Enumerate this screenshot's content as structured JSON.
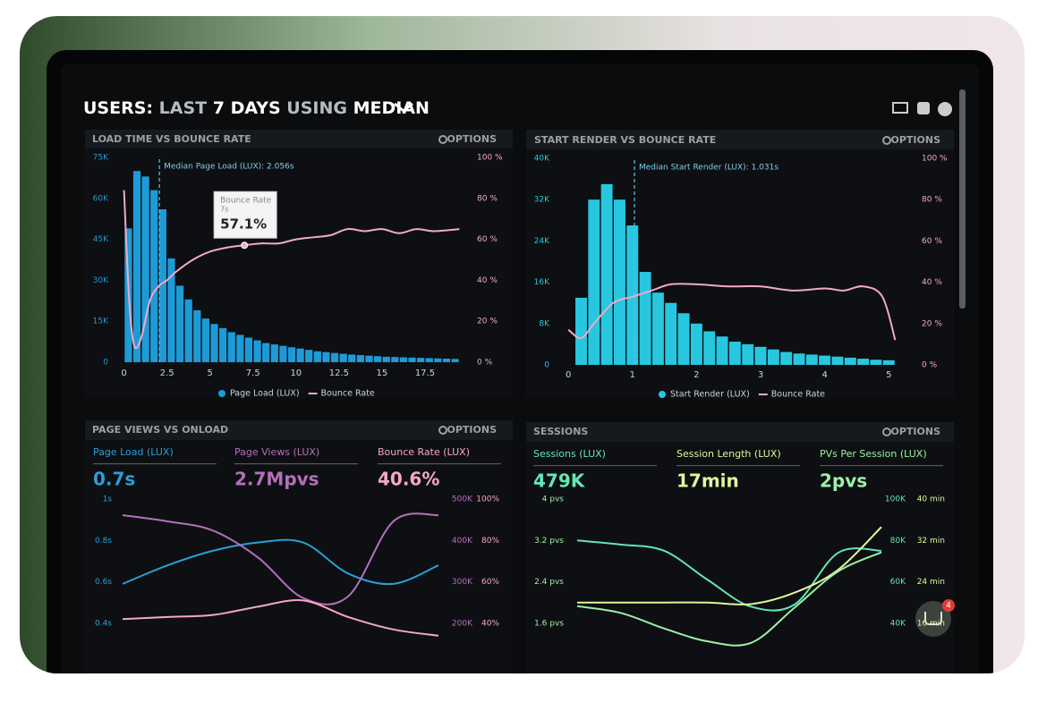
{
  "header": {
    "title_parts": [
      "USERS:",
      "LAST",
      "7 DAYS",
      "USING",
      "MEDIAN"
    ]
  },
  "chart_badge": "4",
  "chart_data": [
    {
      "type": "histogram",
      "title": "LOAD TIME VS BOUNCE RATE",
      "options": "OPTIONS",
      "xlim": [
        -0.5,
        20
      ],
      "xticks": [
        0,
        2.5,
        5,
        7.5,
        10,
        12.5,
        15,
        17.5
      ],
      "ylim": [
        0,
        75
      ],
      "yticks": [
        0,
        {
          "value": 15,
          "label": "15K"
        },
        {
          "value": 30,
          "label": "30K"
        },
        {
          "value": 45,
          "label": "45K"
        },
        {
          "value": 60,
          "label": "60K"
        },
        {
          "value": 75,
          "label": "75K"
        }
      ],
      "y2lim": [
        0,
        100
      ],
      "y2ticks": [
        {
          "value": 0,
          "label": "0 %"
        },
        {
          "value": 20,
          "label": "20 %"
        },
        {
          "value": 40,
          "label": "40 %"
        },
        {
          "value": 60,
          "label": "60 %"
        },
        {
          "value": 80,
          "label": "80 %"
        },
        {
          "value": 100,
          "label": "100 %"
        }
      ],
      "bars": {
        "name": "Page Load (LUX)",
        "color": "#1e9bd7",
        "bins": [
          0,
          0.5,
          1,
          1.5,
          2,
          2.5,
          3,
          3.5,
          4,
          4.5,
          5,
          5.5,
          6,
          6.5,
          7,
          7.5,
          8,
          8.5,
          9,
          9.5,
          10,
          10.5,
          11,
          11.5,
          12,
          12.5,
          13,
          13.5,
          14,
          14.5,
          15,
          15.5,
          16,
          16.5,
          17,
          17.5,
          18,
          18.5,
          19,
          19.5
        ],
        "values": [
          49,
          70,
          68,
          63,
          56,
          38,
          28,
          23,
          19,
          16,
          14,
          12.5,
          11,
          10,
          9,
          8,
          7,
          6.5,
          6,
          5.5,
          5,
          4.5,
          4,
          3.7,
          3.4,
          3.1,
          2.8,
          2.6,
          2.4,
          2.2,
          2,
          1.9,
          1.8,
          1.7,
          1.6,
          1.5,
          1.4,
          1.3,
          1.2
        ]
      },
      "line": {
        "name": "Bounce Rate",
        "color": "#f2a9c6",
        "axis": "y2",
        "x": [
          0,
          0.3,
          0.6,
          1,
          1.5,
          2,
          2.5,
          3,
          4,
          5,
          6,
          7,
          8,
          9,
          10,
          11,
          12,
          13,
          14,
          15,
          16,
          17,
          18,
          19.5
        ],
        "values": [
          84,
          30,
          8,
          12,
          30,
          37,
          40,
          44,
          50,
          54,
          56,
          57.1,
          58,
          58,
          60,
          61,
          62,
          65,
          64,
          65,
          63,
          65,
          64,
          65
        ]
      },
      "annotation": {
        "text": "Median Page Load (LUX): 2.056s",
        "x": 2.056
      },
      "tooltip": {
        "title": "Bounce Rate",
        "subtitle": "7s",
        "x": 7,
        "value": 57.1,
        "value_label": "57.1%"
      }
    },
    {
      "type": "histogram",
      "title": "START RENDER VS BOUNCE RATE",
      "options": "OPTIONS",
      "xlim": [
        -0.1,
        5.15
      ],
      "xticks": [
        0,
        1,
        2,
        3,
        4,
        5
      ],
      "ylim": [
        0,
        40
      ],
      "yticks": [
        0,
        {
          "value": 8,
          "label": "8K"
        },
        {
          "value": 16,
          "label": "16K"
        },
        {
          "value": 24,
          "label": "24K"
        },
        {
          "value": 32,
          "label": "32K"
        },
        {
          "value": 40,
          "label": "40K"
        }
      ],
      "y2lim": [
        0,
        100
      ],
      "y2ticks": [
        {
          "value": 0,
          "label": "0 %"
        },
        {
          "value": 20,
          "label": "20 %"
        },
        {
          "value": 40,
          "label": "40 %"
        },
        {
          "value": 60,
          "label": "60 %"
        },
        {
          "value": 80,
          "label": "80 %"
        },
        {
          "value": 100,
          "label": "100 %"
        }
      ],
      "bars": {
        "name": "Start Render (LUX)",
        "color": "#27c7e0",
        "bins": [
          0.1,
          0.3,
          0.5,
          0.7,
          0.9,
          1.1,
          1.3,
          1.5,
          1.7,
          1.9,
          2.1,
          2.3,
          2.5,
          2.7,
          2.9,
          3.1,
          3.3,
          3.5,
          3.7,
          3.9,
          4.1,
          4.3,
          4.5,
          4.7,
          4.9,
          5.1
        ],
        "values": [
          13,
          32,
          35,
          32,
          27,
          18,
          14,
          12,
          10,
          8,
          6.5,
          5.5,
          4.5,
          4,
          3.5,
          3,
          2.5,
          2.2,
          2,
          1.8,
          1.6,
          1.4,
          1.2,
          1,
          0.9
        ]
      },
      "line": {
        "name": "Bounce Rate",
        "color": "#f2a9c6",
        "axis": "y2",
        "x": [
          0,
          0.2,
          0.4,
          0.7,
          1,
          1.3,
          1.6,
          2,
          2.5,
          3,
          3.5,
          4,
          4.3,
          4.6,
          4.9,
          5.1
        ],
        "values": [
          17,
          13,
          20,
          30,
          33,
          36,
          39,
          39,
          38,
          38,
          36,
          37,
          36,
          38,
          33,
          12
        ]
      },
      "annotation": {
        "text": "Median Start Render (LUX): 1.031s",
        "x": 1.031
      }
    },
    {
      "type": "line",
      "title": "PAGE VIEWS VS ONLOAD",
      "options": "OPTIONS",
      "categories": [
        null,
        null,
        null,
        null,
        null,
        null,
        null,
        null
      ],
      "ylim": [
        0.3,
        1.0
      ],
      "yticks": [
        {
          "value": 0.4,
          "label": "0.4s"
        },
        {
          "value": 0.6,
          "label": "0.6s"
        },
        {
          "value": 0.8,
          "label": "0.8s"
        },
        {
          "value": 1,
          "label": "1s"
        }
      ],
      "y2lim": [
        150,
        500
      ],
      "y2ticks": [
        {
          "value": 200,
          "label": "200K"
        },
        {
          "value": 300,
          "label": "300K"
        },
        {
          "value": 400,
          "label": "400K"
        },
        {
          "value": 500,
          "label": "500K"
        }
      ],
      "y3lim": [
        30,
        100
      ],
      "y3ticks": [
        {
          "value": 40,
          "label": "40%"
        },
        {
          "value": 60,
          "label": "60%"
        },
        {
          "value": 80,
          "label": "80%"
        },
        {
          "value": 100,
          "label": "100%"
        }
      ],
      "series": [
        {
          "name": "Page Load (LUX)",
          "value_text": "0.7s",
          "color": "#2a9fd6",
          "axis": "y",
          "values": [
            0.59,
            0.68,
            0.75,
            0.79,
            0.79,
            0.64,
            0.59,
            0.68
          ]
        },
        {
          "name": "Page Views (LUX)",
          "value_text": "2.7Mpvs",
          "color": "#b56fbb",
          "axis": "y2",
          "values": [
            461,
            446,
            424,
            359,
            261,
            265,
            446,
            461
          ]
        },
        {
          "name": "Bounce Rate (LUX)",
          "value_text": "40.6%",
          "color": "#f4a6c8",
          "axis": "y3",
          "values": [
            42,
            43,
            44,
            48,
            51,
            43,
            37,
            34
          ]
        }
      ]
    },
    {
      "type": "line",
      "title": "SESSIONS",
      "options": "OPTIONS",
      "categories": [
        null,
        null,
        null,
        null,
        null,
        null,
        null,
        null
      ],
      "ylim": [
        1.2,
        4
      ],
      "yticks": [
        {
          "value": 1.6,
          "label": "1.6 pvs"
        },
        {
          "value": 2.4,
          "label": "2.4 pvs"
        },
        {
          "value": 3.2,
          "label": "3.2 pvs"
        },
        {
          "value": 4,
          "label": "4 pvs"
        }
      ],
      "y2lim": [
        30,
        100
      ],
      "y2ticks": [
        {
          "value": 40,
          "label": "40K"
        },
        {
          "value": 60,
          "label": "60K"
        },
        {
          "value": 80,
          "label": "80K"
        },
        {
          "value": 100,
          "label": "100K"
        }
      ],
      "y3lim": [
        12,
        40
      ],
      "y3ticks": [
        {
          "value": 16,
          "label": "16 min"
        },
        {
          "value": 24,
          "label": "24 min"
        },
        {
          "value": 32,
          "label": "32 min"
        },
        {
          "value": 40,
          "label": "40 min"
        }
      ],
      "series": [
        {
          "name": "Sessions (LUX)",
          "value_text": "479K",
          "color": "#63e6b5",
          "axis": "y2",
          "values": [
            80,
            78,
            75,
            61,
            48,
            49,
            74,
            75
          ]
        },
        {
          "name": "Session Length (LUX)",
          "value_text": "17min",
          "color": "#e3f59a",
          "axis": "y3",
          "values": [
            20,
            20,
            20,
            20,
            19.7,
            21.9,
            26.3,
            34.6
          ]
        },
        {
          "name": "PVs Per Session (LUX)",
          "value_text": "2pvs",
          "color": "#9cf0a6",
          "axis": "y",
          "values": [
            1.93,
            1.8,
            1.5,
            1.25,
            1.22,
            1.9,
            2.6,
            2.97
          ]
        }
      ]
    }
  ]
}
